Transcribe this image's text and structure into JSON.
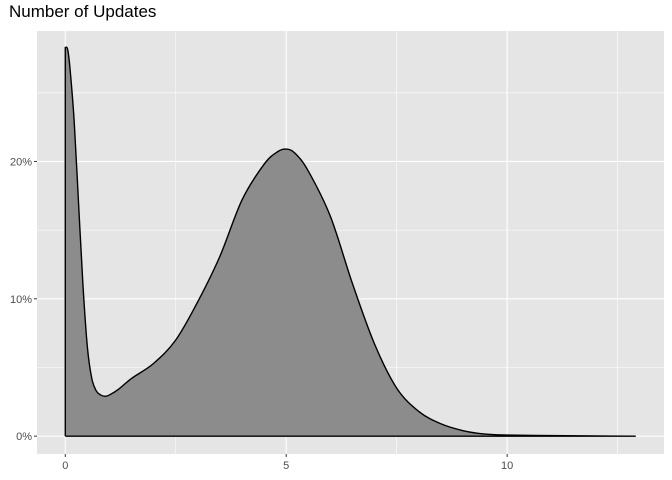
{
  "chart_data": {
    "type": "area",
    "title": "Number of Updates",
    "xlabel": "",
    "ylabel": "",
    "xlim": [
      -0.64,
      13.55
    ],
    "ylim": [
      -0.013,
      0.295
    ],
    "x_ticks": [
      0,
      5,
      10
    ],
    "x_tick_labels": [
      "0",
      "5",
      "10"
    ],
    "y_ticks": [
      0,
      0.1,
      0.2
    ],
    "y_tick_labels": [
      "0%",
      "10%",
      "20%"
    ],
    "grid": true,
    "colors": {
      "panel_background": "#e5e5e5",
      "grid": "#ffffff",
      "fill": "#8c8c8c",
      "line": "#000000"
    },
    "series": [
      {
        "x": [
          0,
          0.05,
          0.1,
          0.2,
          0.3,
          0.4,
          0.5,
          0.6,
          0.7,
          0.8,
          0.9,
          1.0,
          1.2,
          1.5,
          2.0,
          2.5,
          3.0,
          3.5,
          4.0,
          4.5,
          4.8,
          5.0,
          5.2,
          5.5,
          6.0,
          6.5,
          7.0,
          7.5,
          8.0,
          8.5,
          9.0,
          9.5,
          10.0,
          11.0,
          12.0,
          12.9
        ],
        "y": [
          0.283,
          0.282,
          0.27,
          0.23,
          0.17,
          0.11,
          0.065,
          0.042,
          0.033,
          0.03,
          0.029,
          0.03,
          0.034,
          0.042,
          0.053,
          0.07,
          0.098,
          0.131,
          0.172,
          0.198,
          0.207,
          0.209,
          0.206,
          0.193,
          0.16,
          0.111,
          0.067,
          0.035,
          0.018,
          0.009,
          0.004,
          0.0015,
          0.0008,
          0.0004,
          0.0001,
          0.0
        ]
      }
    ]
  }
}
